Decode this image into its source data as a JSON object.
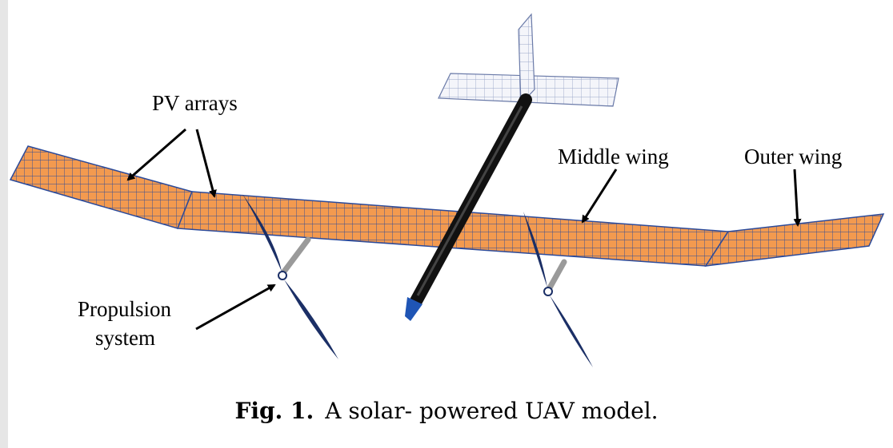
{
  "labels": {
    "pv_arrays": "PV arrays",
    "middle_wing": "Middle wing",
    "outer_wing": "Outer wing",
    "propulsion_line1": "Propulsion",
    "propulsion_line2": "system"
  },
  "caption": {
    "prefix": "Fig. 1.",
    "text": "A solar- powered UAV model."
  },
  "colors": {
    "panel_fill": "#f39a4f",
    "grid_line": "#2b4a9a",
    "tail_fill": "#f4f5fa",
    "fuselage": "#111111",
    "nose": "#1f55b5",
    "propeller": "#1b2f66",
    "pod": "#9a9a9a"
  }
}
